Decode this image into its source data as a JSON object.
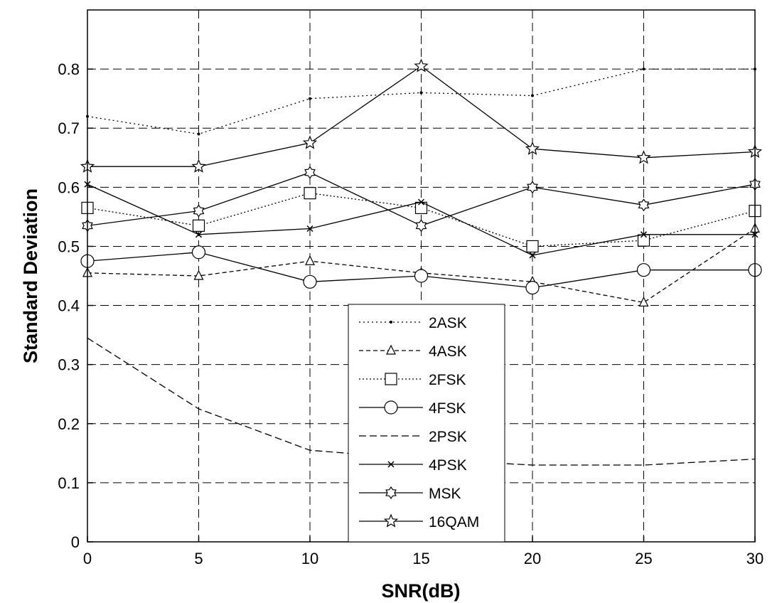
{
  "chart_data": {
    "type": "line",
    "title": "",
    "xlabel": "SNR(dB)",
    "ylabel": "Standard Deviation",
    "xlim": [
      0,
      30
    ],
    "ylim": [
      0,
      0.9
    ],
    "xticks": [
      0,
      5,
      10,
      15,
      20,
      25,
      30
    ],
    "xtick_labels": [
      "0",
      "5",
      "10",
      "15",
      "20",
      "25",
      "30"
    ],
    "yticks": [
      0,
      0.1,
      0.2,
      0.3,
      0.4,
      0.5,
      0.6,
      0.7,
      0.8
    ],
    "ytick_labels": [
      "0",
      "0.1",
      "0.2",
      "0.3",
      "0.4",
      "0.5",
      "0.6",
      "0.7",
      "0.8"
    ],
    "grid": true,
    "legend_position": "lower-center",
    "x": [
      0,
      5,
      10,
      15,
      20,
      25,
      30
    ],
    "series": [
      {
        "name": "2ASK",
        "values": [
          0.72,
          0.69,
          0.75,
          0.76,
          0.755,
          0.8,
          0.8
        ],
        "marker": "dot",
        "dash": "2,4"
      },
      {
        "name": "4ASK",
        "values": [
          0.455,
          0.45,
          0.475,
          0.455,
          0.44,
          0.405,
          0.53
        ],
        "marker": "triangle",
        "dash": "6,4"
      },
      {
        "name": "2FSK",
        "values": [
          0.565,
          0.535,
          0.59,
          0.565,
          0.5,
          0.51,
          0.56
        ],
        "marker": "square",
        "dash": "2,3"
      },
      {
        "name": "4FSK",
        "values": [
          0.475,
          0.49,
          0.44,
          0.45,
          0.43,
          0.46,
          0.46
        ],
        "marker": "circle",
        "dash": ""
      },
      {
        "name": "2PSK",
        "values": [
          0.345,
          0.225,
          0.155,
          0.14,
          0.13,
          0.13,
          0.14
        ],
        "marker": "none",
        "dash": "10,5"
      },
      {
        "name": "4PSK",
        "values": [
          0.605,
          0.52,
          0.53,
          0.575,
          0.485,
          0.52,
          0.52
        ],
        "marker": "x",
        "dash": ""
      },
      {
        "name": "MSK",
        "values": [
          0.535,
          0.56,
          0.625,
          0.535,
          0.6,
          0.57,
          0.605
        ],
        "marker": "hexstar",
        "dash": ""
      },
      {
        "name": "16QAM",
        "values": [
          0.635,
          0.635,
          0.675,
          0.805,
          0.665,
          0.65,
          0.66
        ],
        "marker": "star",
        "dash": ""
      }
    ]
  }
}
